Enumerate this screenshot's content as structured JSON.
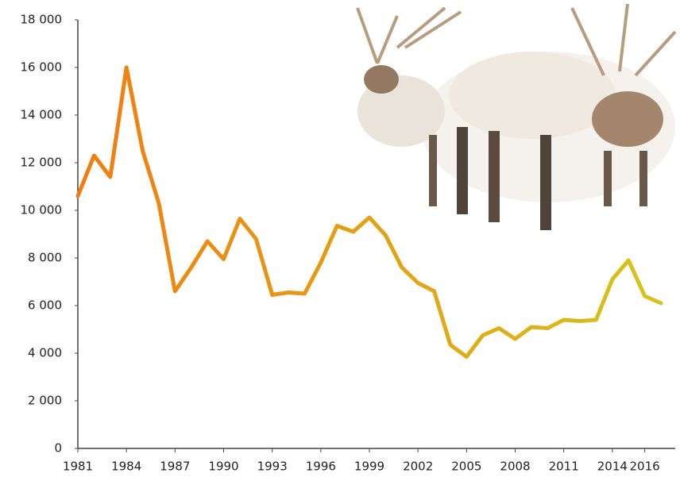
{
  "chart_data": {
    "type": "line",
    "x": [
      1981,
      1982,
      1983,
      1984,
      1985,
      1986,
      1987,
      1988,
      1989,
      1990,
      1991,
      1992,
      1993,
      1994,
      1995,
      1996,
      1997,
      1998,
      1999,
      2000,
      2001,
      2002,
      2003,
      2004,
      2005,
      2006,
      2007,
      2008,
      2009,
      2010,
      2011,
      2012,
      2013,
      2014,
      2015,
      2016,
      2017
    ],
    "series": [
      {
        "colors": [
          "#f27c0f",
          "#d6c41c"
        ],
        "values": [
          10600,
          12300,
          11400,
          16000,
          12500,
          10300,
          6600,
          7600,
          8700,
          7950,
          9650,
          8800,
          6450,
          6550,
          6500,
          7800,
          9350,
          9100,
          9700,
          8950,
          7600,
          6950,
          6600,
          4350,
          3850,
          4750,
          5050,
          4600,
          5100,
          5050,
          5400,
          5350,
          5400,
          7100,
          7900,
          6400,
          6100
        ]
      }
    ],
    "xlim": [
      1981,
      2017
    ],
    "xticks": [
      1981,
      1984,
      1987,
      1990,
      1993,
      1996,
      1999,
      2002,
      2005,
      2008,
      2011,
      2014,
      2016
    ],
    "ylim": [
      0,
      18000
    ],
    "yticks": [
      0,
      {
        "value": 2000,
        "label": "2 000"
      },
      {
        "value": 4000,
        "label": "4 000"
      },
      {
        "value": 6000,
        "label": "6 000"
      },
      {
        "value": 8000,
        "label": "8 000"
      },
      {
        "value": 10000,
        "label": "10 000"
      },
      {
        "value": 12000,
        "label": "12 000"
      },
      {
        "value": 14000,
        "label": "14 000"
      },
      {
        "value": 16000,
        "label": "16 000"
      },
      {
        "value": 18000,
        "label": "18 000"
      }
    ],
    "grid": false
  }
}
